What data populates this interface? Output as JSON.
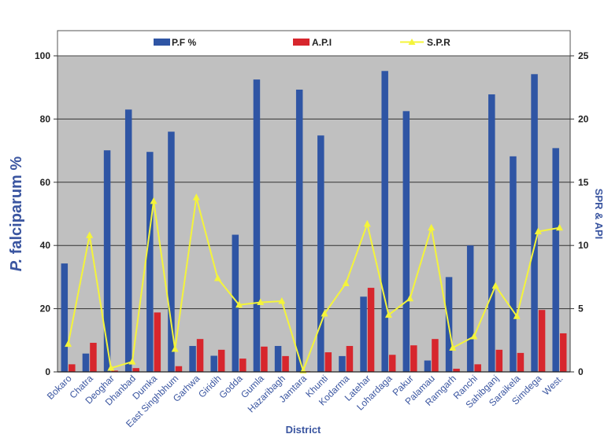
{
  "chart_data": {
    "type": "bar",
    "xlabel": "District",
    "ylabel_left_italic": "P.",
    "ylabel_left_rest": " falciparum %",
    "ylabel_right": "SPR & API",
    "ylim": [
      0,
      100
    ],
    "y2lim": [
      0,
      25
    ],
    "yticks": [
      "0",
      "20",
      "40",
      "60",
      "80",
      "100"
    ],
    "y2ticks": [
      "0",
      "5",
      "10",
      "15",
      "20",
      "25"
    ],
    "grid": true,
    "legend_position": "top",
    "categories": [
      "Bokaro",
      "Chatra",
      "Deoghar",
      "Dhanbad",
      "Dumka",
      "East Singhbhum",
      "Garhwa",
      "Giridih",
      "Godda",
      "Gumla",
      "Hazaribagh",
      "Jamtara",
      "Khunti",
      "Kodarma",
      "Latehar",
      "Lohardaga",
      "Pakur",
      "Palamau",
      "Ramgarh",
      "Ranchi",
      "Sahibganj",
      "Saraikela",
      "Simdega",
      "West."
    ],
    "series": [
      {
        "name": "P.F %",
        "type": "bar",
        "axis": "left",
        "color": "#2f55a4",
        "values": [
          34.3,
          5.8,
          70.1,
          83,
          69.6,
          76,
          8.2,
          5.1,
          43.4,
          92.5,
          8.2,
          89.3,
          74.8,
          5,
          23.8,
          95.2,
          82.5,
          3.6,
          30,
          40,
          87.8,
          68.2,
          94.2,
          70.8
        ]
      },
      {
        "name": "A.P.I",
        "type": "bar",
        "axis": "right",
        "color": "#d7262d",
        "values": [
          0.6,
          2.3,
          0.1,
          0.3,
          4.7,
          0.45,
          2.6,
          1.75,
          1.05,
          2.0,
          1.25,
          0.05,
          1.55,
          2.05,
          6.65,
          1.35,
          2.1,
          2.6,
          0.25,
          0.6,
          1.75,
          1.5,
          4.9,
          3.05
        ]
      },
      {
        "name": "S.P.R",
        "type": "line",
        "axis": "right",
        "color": "#f4f43a",
        "values": [
          2.2,
          10.8,
          0.3,
          0.8,
          13.5,
          1.8,
          13.8,
          7.4,
          5.3,
          5.5,
          5.6,
          0.1,
          4.6,
          7.0,
          11.7,
          4.5,
          5.8,
          11.4,
          1.9,
          2.8,
          6.8,
          4.4,
          11.1,
          11.4
        ]
      }
    ]
  }
}
